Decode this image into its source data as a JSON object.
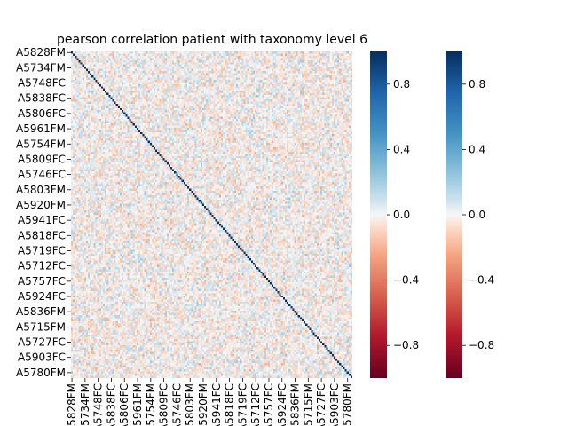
{
  "chart_data": {
    "type": "heatmap",
    "title": "pearson correlation patient with taxonomy level 6",
    "xlabel": "",
    "ylabel": "",
    "size": 150,
    "labels": [
      "A5828FM",
      "A5734FM",
      "A5748FC",
      "A5838FC",
      "A5806FC",
      "A5961FM",
      "A5754FM",
      "A5809FC",
      "A5746FC",
      "A5803FM",
      "A5920FM",
      "A5941FC",
      "A5818FC",
      "A5719FC",
      "A5712FC",
      "A5757FC",
      "A5924FC",
      "A5836FM",
      "A5715FM",
      "A5727FC",
      "A5903FC",
      "A5780FM"
    ],
    "label_every": 7,
    "diagonal_value": 1.0,
    "off_diagonal_range": [
      -0.35,
      0.45
    ],
    "vmin": -1.0,
    "vmax": 1.0,
    "colormap": "RdBu",
    "colorbar_ticks": [
      0.8,
      0.4,
      0.0,
      -0.4,
      -0.8
    ],
    "colorbar_tick_labels": [
      "0.8",
      "0.4",
      "0.0",
      "−0.4",
      "−0.8"
    ],
    "colorbar_count": 2,
    "grid": false
  }
}
